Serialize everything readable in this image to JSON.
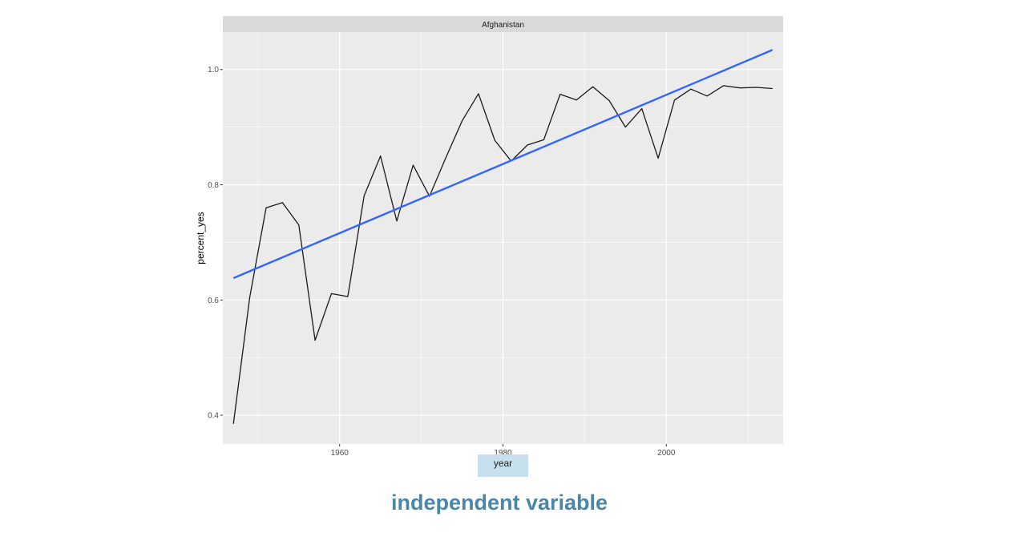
{
  "caption": "independent variable",
  "colors": {
    "panel": "#ebebeb",
    "strip": "#d9d9d9",
    "grid": "#ffffff",
    "line": "#1a1a1a",
    "trend": "#3366ff",
    "highlight": "#c6e0ee",
    "caption": "#4a86a8"
  },
  "chart_data": {
    "type": "line",
    "facet": "Afghanistan",
    "xlabel": "year",
    "ylabel": "percent_yes",
    "xlim": [
      1945.7,
      2014.3
    ],
    "ylim": [
      0.35,
      1.065
    ],
    "x_ticks": [
      1960,
      1980,
      2000
    ],
    "x_tick_labels": [
      "1960",
      "1980",
      "2000"
    ],
    "y_ticks": [
      0.4,
      0.6,
      0.8,
      1.0
    ],
    "y_tick_labels": [
      "0.4",
      "0.6",
      "0.8",
      "1.0"
    ],
    "grid": true,
    "series": [
      {
        "x": [
          1947,
          1949,
          1951,
          1953,
          1955,
          1957,
          1959,
          1961,
          1963,
          1965,
          1967,
          1969,
          1971,
          1973,
          1975,
          1977,
          1979,
          1981,
          1983,
          1985,
          1987,
          1989,
          1991,
          1993,
          1995,
          1997,
          1999,
          2001,
          2003,
          2005,
          2007,
          2009,
          2011,
          2013
        ],
        "y": [
          0.385,
          0.605,
          0.76,
          0.769,
          0.73,
          0.53,
          0.611,
          0.606,
          0.781,
          0.85,
          0.737,
          0.834,
          0.78,
          0.847,
          0.911,
          0.958,
          0.877,
          0.841,
          0.869,
          0.878,
          0.957,
          0.947,
          0.97,
          0.946,
          0.9,
          0.932,
          0.846,
          0.947,
          0.966,
          0.954,
          0.972,
          0.968,
          0.969,
          0.967
        ]
      },
      {
        "type": "trend",
        "x": [
          1947,
          2013
        ],
        "y": [
          0.638,
          1.034
        ]
      }
    ]
  }
}
